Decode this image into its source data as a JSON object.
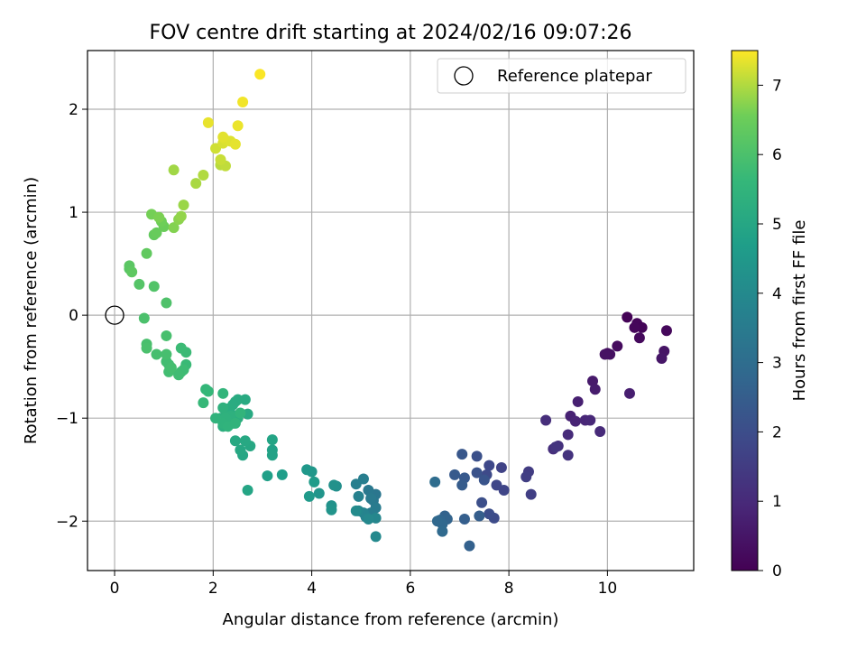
{
  "chart_data": {
    "type": "scatter",
    "title": "FOV centre drift starting at 2024/02/16 09:07:26",
    "xlabel": "Angular distance from reference (arcmin)",
    "ylabel": "Rotation from reference (arcmin)",
    "xlim": [
      -0.55,
      11.75
    ],
    "ylim": [
      -2.48,
      2.57
    ],
    "x_ticks": [
      0,
      2,
      4,
      6,
      8,
      10
    ],
    "y_ticks": [
      -2,
      -1,
      0,
      1,
      2
    ],
    "grid": true,
    "colormap": "viridis",
    "colorbar": {
      "label": "Hours from first FF file",
      "range": [
        0,
        7.5
      ],
      "ticks": [
        0,
        1,
        2,
        3,
        4,
        5,
        6,
        7
      ]
    },
    "legend": {
      "position": "top-right",
      "entries": [
        "Reference platepar"
      ]
    },
    "reference_point": {
      "x": 0,
      "y": 0,
      "marker": "hollow-circle"
    },
    "points": [
      [
        10.4,
        -0.02,
        0.05
      ],
      [
        10.6,
        -0.08,
        0.12
      ],
      [
        10.7,
        -0.12,
        0.1
      ],
      [
        11.2,
        -0.15,
        0.18
      ],
      [
        10.55,
        -0.12,
        0.15
      ],
      [
        10.65,
        -0.22,
        0.2
      ],
      [
        10.2,
        -0.3,
        0.25
      ],
      [
        10.0,
        -0.37,
        0.3
      ],
      [
        10.05,
        -0.38,
        0.35
      ],
      [
        9.95,
        -0.38,
        0.4
      ],
      [
        11.15,
        -0.35,
        0.45
      ],
      [
        11.1,
        -0.42,
        0.5
      ],
      [
        9.7,
        -0.64,
        0.6
      ],
      [
        9.75,
        -0.72,
        0.65
      ],
      [
        10.45,
        -0.76,
        0.7
      ],
      [
        9.4,
        -0.84,
        0.75
      ],
      [
        9.25,
        -0.98,
        0.8
      ],
      [
        9.35,
        -1.03,
        0.85
      ],
      [
        9.55,
        -1.02,
        0.9
      ],
      [
        9.65,
        -1.02,
        0.95
      ],
      [
        9.85,
        -1.13,
        1.0
      ],
      [
        9.2,
        -1.16,
        1.05
      ],
      [
        8.75,
        -1.02,
        1.1
      ],
      [
        8.9,
        -1.3,
        1.15
      ],
      [
        9.0,
        -1.27,
        1.2
      ],
      [
        9.2,
        -1.36,
        1.25
      ],
      [
        8.95,
        -1.28,
        1.3
      ],
      [
        8.4,
        -1.52,
        1.5
      ],
      [
        8.35,
        -1.57,
        1.55
      ],
      [
        8.45,
        -1.74,
        1.6
      ],
      [
        7.85,
        -1.48,
        1.7
      ],
      [
        7.9,
        -1.7,
        1.75
      ],
      [
        7.75,
        -1.65,
        1.8
      ],
      [
        7.6,
        -1.46,
        1.85
      ],
      [
        7.55,
        -1.55,
        1.9
      ],
      [
        7.7,
        -1.97,
        1.95
      ],
      [
        7.6,
        -1.93,
        2.0
      ],
      [
        7.45,
        -1.82,
        2.05
      ],
      [
        7.35,
        -1.37,
        2.1
      ],
      [
        7.35,
        -1.53,
        2.15
      ],
      [
        7.5,
        -1.6,
        2.2
      ],
      [
        7.05,
        -1.35,
        2.3
      ],
      [
        7.1,
        -1.58,
        2.35
      ],
      [
        6.9,
        -1.55,
        2.4
      ],
      [
        7.05,
        -1.65,
        2.45
      ],
      [
        7.4,
        -1.95,
        2.5
      ],
      [
        7.1,
        -1.98,
        2.55
      ],
      [
        7.2,
        -2.24,
        2.6
      ],
      [
        6.7,
        -1.95,
        2.65
      ],
      [
        6.75,
        -1.98,
        2.7
      ],
      [
        6.6,
        -1.99,
        2.75
      ],
      [
        6.65,
        -2.03,
        2.8
      ],
      [
        6.55,
        -2.0,
        2.85
      ],
      [
        6.65,
        -2.1,
        2.9
      ],
      [
        6.5,
        -1.62,
        3.0
      ],
      [
        5.3,
        -1.74,
        3.3
      ],
      [
        5.25,
        -1.8,
        3.35
      ],
      [
        5.15,
        -1.7,
        3.4
      ],
      [
        5.2,
        -1.78,
        3.45
      ],
      [
        5.3,
        -1.87,
        3.5
      ],
      [
        5.2,
        -1.92,
        3.55
      ],
      [
        5.05,
        -1.59,
        3.6
      ],
      [
        4.9,
        -1.64,
        3.65
      ],
      [
        4.95,
        -1.76,
        3.7
      ],
      [
        5.1,
        -1.96,
        3.75
      ],
      [
        5.05,
        -1.92,
        3.8
      ],
      [
        4.95,
        -1.9,
        3.85
      ],
      [
        5.3,
        -1.97,
        3.9
      ],
      [
        5.15,
        -1.98,
        3.95
      ],
      [
        5.3,
        -2.15,
        4.0
      ],
      [
        4.9,
        -1.9,
        4.05
      ],
      [
        4.5,
        -1.66,
        4.2
      ],
      [
        4.45,
        -1.65,
        4.25
      ],
      [
        4.4,
        -1.85,
        4.3
      ],
      [
        4.4,
        -1.89,
        4.35
      ],
      [
        4.15,
        -1.73,
        4.4
      ],
      [
        4.0,
        -1.52,
        4.45
      ],
      [
        3.9,
        -1.5,
        4.5
      ],
      [
        3.95,
        -1.76,
        4.55
      ],
      [
        4.05,
        -1.62,
        4.6
      ],
      [
        3.4,
        -1.55,
        4.7
      ],
      [
        3.1,
        -1.56,
        4.75
      ],
      [
        3.2,
        -1.31,
        4.8
      ],
      [
        3.2,
        -1.36,
        4.85
      ],
      [
        3.2,
        -1.21,
        4.9
      ],
      [
        2.7,
        -1.7,
        4.95
      ],
      [
        2.6,
        -1.36,
        5.0
      ],
      [
        2.55,
        -1.31,
        5.02
      ],
      [
        2.75,
        -1.27,
        5.04
      ],
      [
        2.65,
        -1.22,
        5.06
      ],
      [
        2.45,
        -1.22,
        5.08
      ],
      [
        2.7,
        -0.96,
        5.1
      ],
      [
        2.65,
        -0.82,
        5.12
      ],
      [
        2.5,
        -0.82,
        5.14
      ],
      [
        2.45,
        -0.84,
        5.16
      ],
      [
        2.4,
        -0.87,
        5.18
      ],
      [
        2.3,
        -0.91,
        5.2
      ],
      [
        2.35,
        -0.95,
        5.22
      ],
      [
        2.5,
        -1.0,
        5.24
      ],
      [
        2.4,
        -1.05,
        5.26
      ],
      [
        2.3,
        -1.05,
        5.28
      ],
      [
        2.2,
        -1.08,
        5.3
      ],
      [
        2.15,
        -1.0,
        5.32
      ],
      [
        2.25,
        -0.98,
        5.34
      ],
      [
        2.35,
        -0.98,
        5.36
      ],
      [
        2.2,
        -0.9,
        5.38
      ],
      [
        2.25,
        -1.0,
        5.4
      ],
      [
        2.2,
        -1.05,
        5.42
      ],
      [
        2.05,
        -1.0,
        5.44
      ],
      [
        2.3,
        -1.08,
        5.46
      ],
      [
        2.45,
        -1.05,
        5.48
      ],
      [
        2.55,
        -0.95,
        5.5
      ],
      [
        2.2,
        -0.76,
        5.52
      ],
      [
        1.85,
        -0.72,
        5.6
      ],
      [
        1.9,
        -0.74,
        5.62
      ],
      [
        1.8,
        -0.85,
        5.64
      ],
      [
        1.45,
        -0.48,
        5.7
      ],
      [
        1.45,
        -0.36,
        5.72
      ],
      [
        1.35,
        -0.32,
        5.74
      ],
      [
        1.35,
        -0.55,
        5.76
      ],
      [
        1.4,
        -0.53,
        5.78
      ],
      [
        1.3,
        -0.58,
        5.8
      ],
      [
        1.1,
        -0.48,
        5.82
      ],
      [
        1.05,
        -0.45,
        5.84
      ],
      [
        1.1,
        -0.55,
        5.86
      ],
      [
        1.15,
        -0.51,
        5.88
      ],
      [
        0.85,
        -0.38,
        5.9
      ],
      [
        1.05,
        -0.38,
        5.92
      ],
      [
        1.05,
        -0.2,
        5.94
      ],
      [
        0.65,
        -0.28,
        5.96
      ],
      [
        0.65,
        -0.32,
        5.98
      ],
      [
        0.6,
        -0.03,
        6.0
      ],
      [
        1.05,
        0.12,
        6.05
      ],
      [
        0.8,
        0.28,
        6.1
      ],
      [
        0.5,
        0.3,
        6.15
      ],
      [
        0.3,
        0.45,
        6.2
      ],
      [
        0.3,
        0.48,
        6.25
      ],
      [
        0.35,
        0.42,
        6.3
      ],
      [
        0.65,
        0.6,
        6.35
      ],
      [
        0.8,
        0.78,
        6.4
      ],
      [
        0.85,
        0.8,
        6.45
      ],
      [
        1.0,
        0.86,
        6.5
      ],
      [
        0.95,
        0.91,
        6.55
      ],
      [
        0.75,
        0.98,
        6.6
      ],
      [
        0.9,
        0.95,
        6.65
      ],
      [
        1.2,
        0.85,
        6.7
      ],
      [
        1.3,
        0.93,
        6.75
      ],
      [
        1.35,
        0.96,
        6.8
      ],
      [
        1.4,
        1.07,
        6.85
      ],
      [
        1.2,
        1.41,
        6.9
      ],
      [
        1.65,
        1.28,
        6.95
      ],
      [
        1.8,
        1.36,
        7.0
      ],
      [
        2.15,
        1.46,
        7.05
      ],
      [
        2.25,
        1.45,
        7.1
      ],
      [
        2.15,
        1.51,
        7.15
      ],
      [
        2.05,
        1.62,
        7.2
      ],
      [
        2.2,
        1.67,
        7.25
      ],
      [
        2.25,
        1.7,
        7.28
      ],
      [
        2.35,
        1.69,
        7.3
      ],
      [
        2.2,
        1.73,
        7.32
      ],
      [
        2.45,
        1.66,
        7.34
      ],
      [
        1.9,
        1.87,
        7.36
      ],
      [
        2.5,
        1.84,
        7.38
      ],
      [
        2.6,
        2.07,
        7.42
      ],
      [
        2.95,
        2.34,
        7.48
      ]
    ]
  }
}
